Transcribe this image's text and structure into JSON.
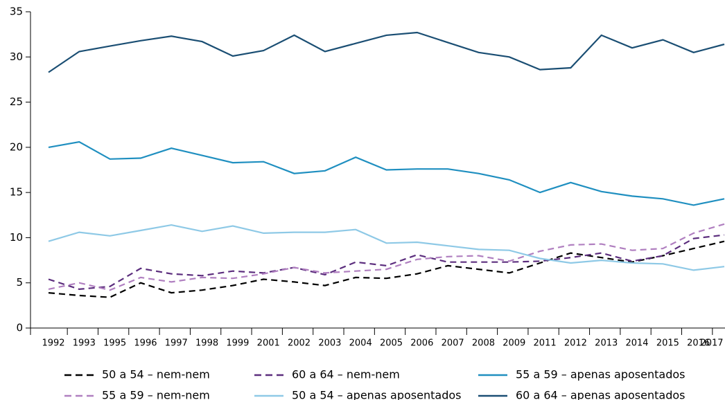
{
  "chart_data": {
    "type": "line",
    "categories": [
      "1992",
      "1993",
      "1995",
      "1996",
      "1997",
      "1998",
      "1999",
      "2001",
      "2002",
      "2003",
      "2004",
      "2005",
      "2006",
      "2007",
      "2008",
      "2009",
      "2011",
      "2012",
      "2013",
      "2014",
      "2015",
      "2016",
      "2017"
    ],
    "ylim": [
      0,
      35
    ],
    "yticks": [
      0,
      5,
      10,
      15,
      20,
      25,
      30,
      35
    ],
    "grid": false,
    "series": [
      {
        "name": "50 a 54 – nem-nem",
        "color": "#000000",
        "dashed": true,
        "values": [
          3.9,
          3.6,
          3.4,
          5.0,
          3.9,
          4.2,
          4.7,
          5.4,
          5.1,
          4.7,
          5.6,
          5.5,
          6.0,
          6.9,
          6.5,
          6.1,
          7.2,
          8.3,
          7.8,
          7.3,
          8.0,
          8.8,
          9.6
        ]
      },
      {
        "name": "60 a 64 – nem-nem",
        "color": "#5b2d7d",
        "dashed": true,
        "values": [
          5.4,
          4.3,
          4.6,
          6.6,
          6.0,
          5.8,
          6.3,
          6.1,
          6.7,
          5.9,
          7.3,
          6.9,
          8.1,
          7.3,
          7.3,
          7.3,
          7.4,
          7.8,
          8.3,
          7.4,
          8.0,
          9.9,
          10.3
        ]
      },
      {
        "name": "55 a 59 – apenas aposentados",
        "color": "#1f8fc0",
        "dashed": false,
        "values": [
          20.0,
          20.6,
          18.7,
          18.8,
          19.9,
          19.1,
          18.3,
          18.4,
          17.1,
          17.4,
          18.9,
          17.5,
          17.6,
          17.6,
          17.1,
          16.4,
          15.0,
          16.1,
          15.1,
          14.6,
          14.3,
          13.6,
          14.3
        ]
      },
      {
        "name": "55 a 59 – nem-nem",
        "color": "#b07fc0",
        "dashed": true,
        "values": [
          4.3,
          5.0,
          4.2,
          5.6,
          5.1,
          5.6,
          5.5,
          6.0,
          6.7,
          6.1,
          6.3,
          6.5,
          7.6,
          7.9,
          8.0,
          7.4,
          8.5,
          9.2,
          9.3,
          8.6,
          8.8,
          10.5,
          11.5
        ]
      },
      {
        "name": "50 a 54 – apenas aposentados",
        "color": "#8ec9e6",
        "dashed": false,
        "values": [
          9.6,
          10.6,
          10.2,
          10.8,
          11.4,
          10.7,
          11.3,
          10.5,
          10.6,
          10.6,
          10.9,
          9.4,
          9.5,
          9.1,
          8.7,
          8.6,
          7.7,
          7.2,
          7.5,
          7.2,
          7.1,
          6.4,
          6.8
        ]
      },
      {
        "name": "60 a 64 – apenas aposentados",
        "color": "#1a4e73",
        "dashed": false,
        "values": [
          28.3,
          30.6,
          31.2,
          31.8,
          32.3,
          31.7,
          30.1,
          30.7,
          32.4,
          30.6,
          31.5,
          32.4,
          32.7,
          31.6,
          30.5,
          30.0,
          28.6,
          28.8,
          32.4,
          31.0,
          31.9,
          30.5,
          31.4
        ]
      }
    ]
  }
}
